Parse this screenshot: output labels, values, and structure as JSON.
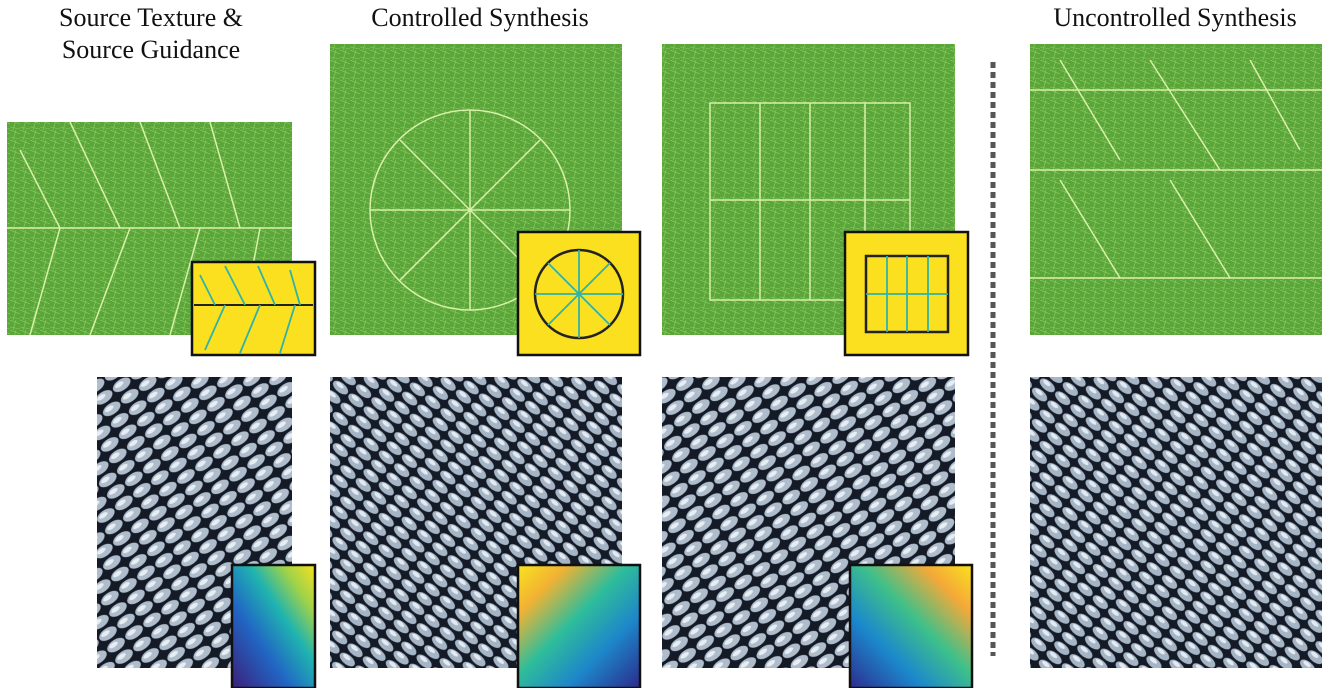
{
  "headings": {
    "source": "Source Texture & Source Guidance",
    "controlled": "Controlled Synthesis",
    "uncontrolled": "Uncontrolled Synthesis"
  }
}
